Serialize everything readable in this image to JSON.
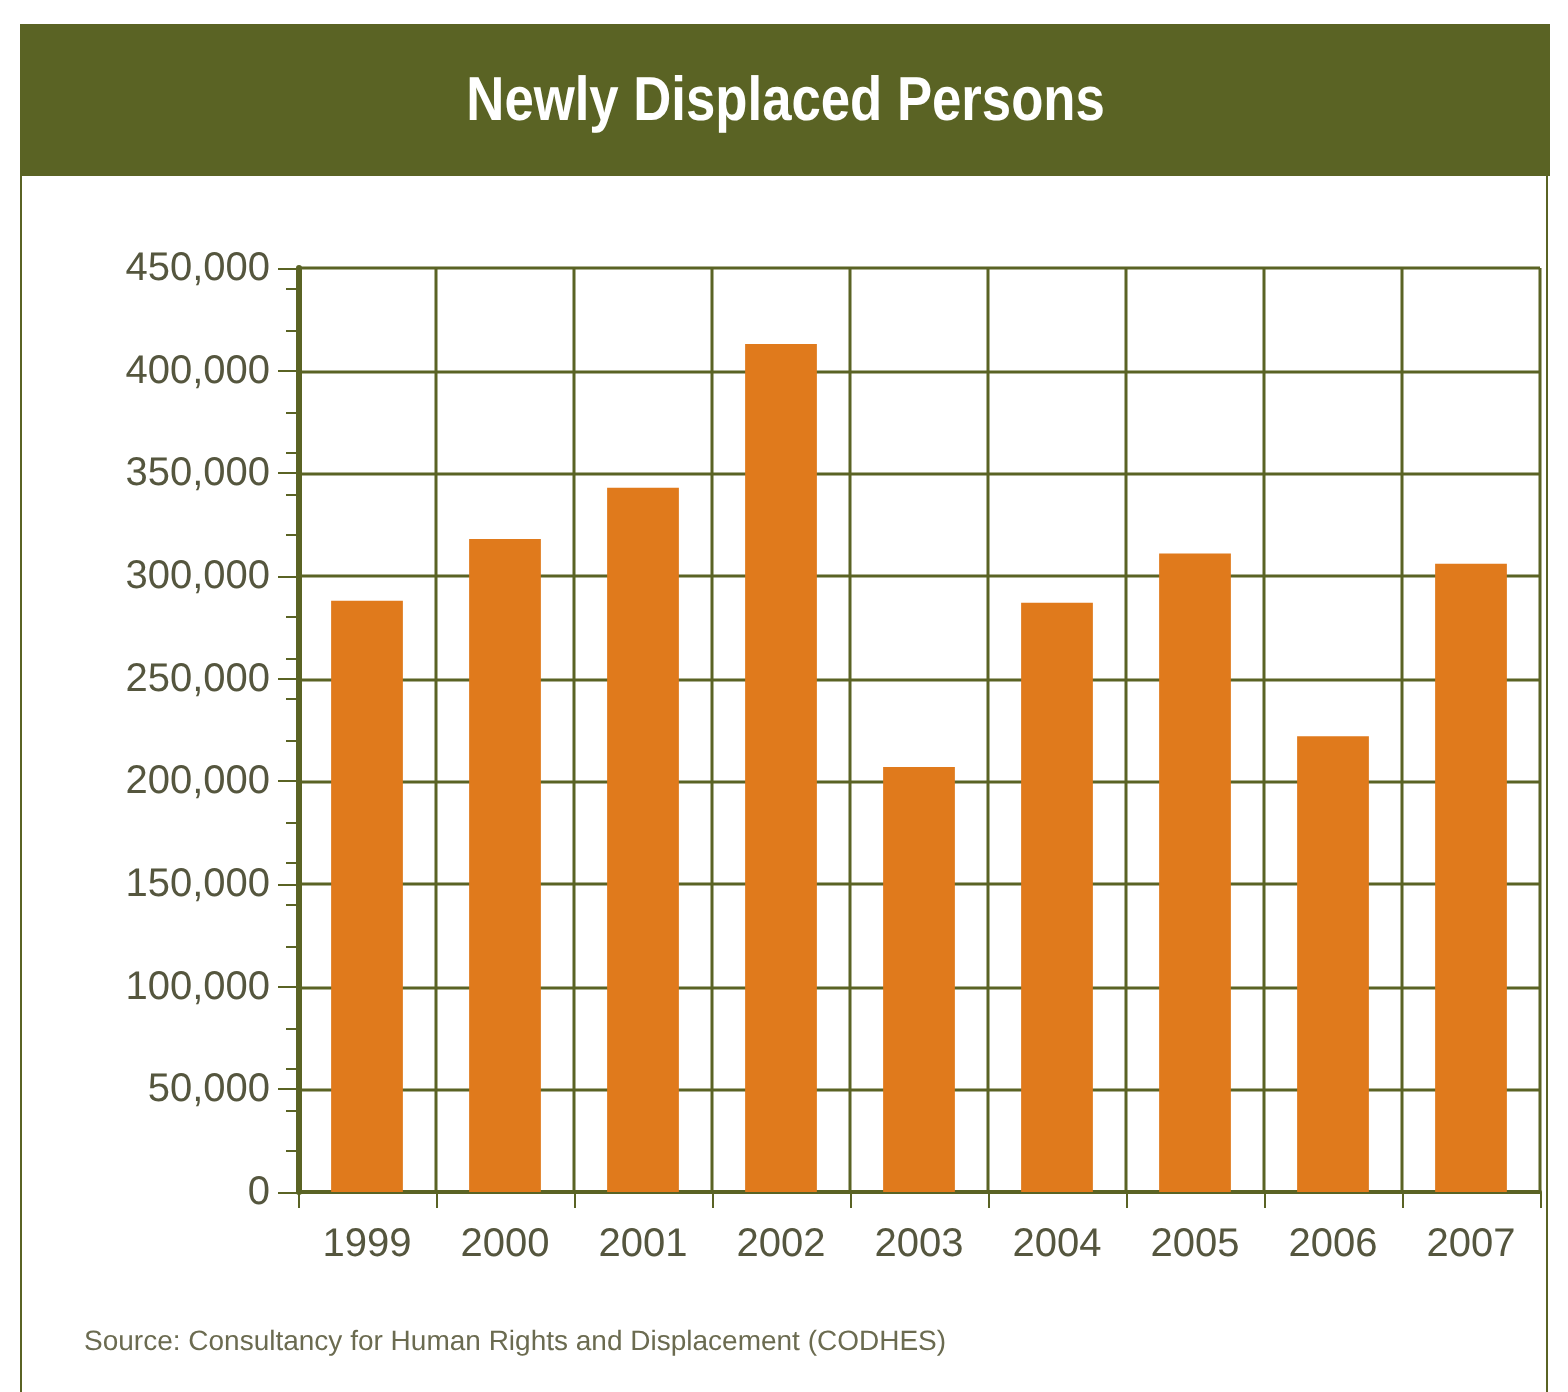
{
  "chart_data": {
    "type": "bar",
    "title": "Newly Displaced Persons",
    "categories": [
      "1999",
      "2000",
      "2001",
      "2002",
      "2003",
      "2004",
      "2005",
      "2006",
      "2007"
    ],
    "values": [
      288000,
      318000,
      343000,
      413000,
      207000,
      287000,
      311000,
      222000,
      306000
    ],
    "color": "#e07a1c",
    "ylim": [
      0,
      450000
    ],
    "yticks": [
      0,
      {
        "value": 50000,
        "label": "50,000"
      },
      {
        "value": 100000,
        "label": "100,000"
      },
      {
        "value": 150000,
        "label": "150,000"
      },
      {
        "value": 200000,
        "label": "200,000"
      },
      {
        "value": 250000,
        "label": "250,000"
      },
      {
        "value": 300000,
        "label": "300,000"
      },
      {
        "value": 350000,
        "label": "350,000"
      },
      {
        "value": 400000,
        "label": "400,000"
      },
      {
        "value": 450000,
        "label": "450,000"
      }
    ],
    "grid": true,
    "annotations": [
      "Source: Consultancy for Human Rights and Displacement (CODHES)"
    ]
  }
}
